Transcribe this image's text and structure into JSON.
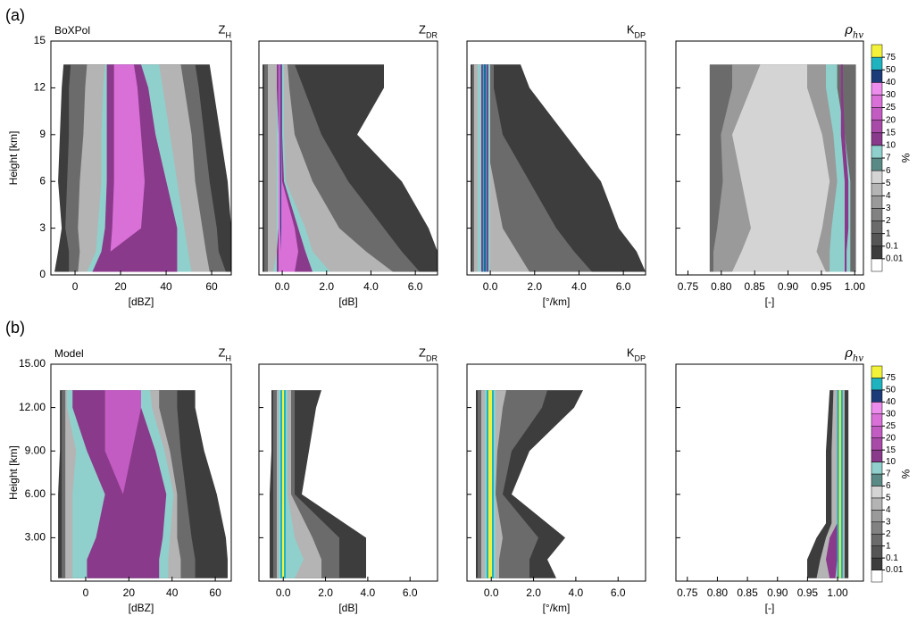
{
  "figure_labels": [
    "(a)",
    "(b)"
  ],
  "chart_data": [
    {
      "type": "cfad",
      "label": "BoXPol",
      "title": {
        "main": "Z",
        "sub": "H"
      },
      "xlabel": "[dBZ]",
      "ylabel": "Height [km]",
      "xlim": [
        -10.6,
        68.6
      ],
      "xticks": [
        0,
        20,
        40,
        60
      ],
      "ylim": [
        0,
        15
      ],
      "yticks": [
        0,
        3,
        6,
        9,
        12,
        15
      ]
    },
    {
      "type": "cfad",
      "title": {
        "main": "Z",
        "sub": "DR"
      },
      "xlabel": "[dB]",
      "xlim": [
        -1.05,
        7.0
      ],
      "xticks": [
        {
          "value": 0,
          "label": "0.0"
        },
        {
          "value": 2,
          "label": "2.0"
        },
        {
          "value": 4,
          "label": "4.0"
        },
        {
          "value": 6,
          "label": "6.0"
        }
      ],
      "ylim": [
        0,
        15
      ]
    },
    {
      "type": "cfad",
      "title": {
        "main": "K",
        "sub": "DP"
      },
      "xlabel": "[°/km]",
      "xlim": [
        -1.05,
        7.0
      ],
      "xticks": [
        {
          "value": 0,
          "label": "0.0"
        },
        {
          "value": 2,
          "label": "2.0"
        },
        {
          "value": 4,
          "label": "4.0"
        },
        {
          "value": 6,
          "label": "6.0"
        }
      ],
      "ylim": [
        0,
        15
      ]
    },
    {
      "type": "cfad",
      "title": {
        "main": "ρ",
        "sub": "hv"
      },
      "xlabel": "[-]",
      "xlim": [
        0.732,
        1.013
      ],
      "xticks": [
        0.75,
        {
          "value": 0.8,
          "label": "0.80"
        },
        0.85,
        {
          "value": 0.9,
          "label": "0.90"
        },
        0.95,
        {
          "value": 1,
          "label": "1.00"
        }
      ],
      "ylim": [
        0,
        15
      ]
    },
    {
      "type": "cfad",
      "label": "Model",
      "title": {
        "main": "Z",
        "sub": "H"
      },
      "xlabel": "[dBZ]",
      "ylabel": "Height [km]",
      "xlim": [
        -16.1,
        67.4
      ],
      "xticks": [
        0,
        20,
        40,
        60
      ],
      "ylim": [
        0,
        15
      ],
      "yticks": [
        {
          "value": 3,
          "label": "3.00"
        },
        {
          "value": 6,
          "label": "6.00"
        },
        {
          "value": 9,
          "label": "9.00"
        },
        {
          "value": 12,
          "label": "12.00"
        },
        {
          "value": 15,
          "label": "15.00"
        }
      ]
    },
    {
      "type": "cfad",
      "title": {
        "main": "Z",
        "sub": "DR"
      },
      "xlabel": "[dB]",
      "xlim": [
        -1.15,
        7.3
      ],
      "xticks": [
        {
          "value": 0,
          "label": "0.0"
        },
        {
          "value": 2,
          "label": "2.0"
        },
        {
          "value": 4,
          "label": "4.0"
        },
        {
          "value": 6,
          "label": "6.0"
        }
      ],
      "ylim": [
        0,
        15
      ]
    },
    {
      "type": "cfad",
      "title": {
        "main": "K",
        "sub": "DP"
      },
      "xlabel": "[°/km]",
      "xlim": [
        -1.15,
        7.3
      ],
      "xticks": [
        {
          "value": 0,
          "label": "0.0"
        },
        {
          "value": 2,
          "label": "2.0"
        },
        {
          "value": 4,
          "label": "4.0"
        },
        {
          "value": 6,
          "label": "6.0"
        }
      ],
      "ylim": [
        0,
        15
      ]
    },
    {
      "type": "cfad",
      "title": {
        "main": "ρ",
        "sub": "hv"
      },
      "xlabel": "[-]",
      "xlim": [
        0.731,
        1.043
      ],
      "xticks": [
        0.75,
        {
          "value": 0.8,
          "label": "0.80"
        },
        0.85,
        {
          "value": 0.9,
          "label": "0.90"
        },
        0.95,
        {
          "value": 1,
          "label": "1.00"
        }
      ],
      "ylim": [
        0,
        15
      ]
    }
  ],
  "colorbars": [
    {
      "label": "%",
      "ticks": [
        0.01,
        0.1,
        1,
        2,
        3,
        4,
        5,
        6,
        7,
        10,
        15,
        20,
        25,
        30,
        40,
        50,
        75
      ],
      "colors": [
        "#ffffff",
        "#3d3d3d",
        "#555555",
        "#6b6b6b",
        "#828282",
        "#9a9a9a",
        "#b4b4b4",
        "#d4d4d4",
        "#5a8a86",
        "#8fd0cc",
        "#8a3a8a",
        "#a84aa8",
        "#c25cc2",
        "#d870d8",
        "#ec8cec",
        "#1d3b78",
        "#1fb3bf",
        "#f2f23a"
      ]
    },
    {
      "label": "%",
      "ticks": [
        0.01,
        0.1,
        1,
        2,
        3,
        4,
        5,
        6,
        7,
        10,
        15,
        20,
        25,
        30,
        40,
        50,
        75
      ],
      "colors": [
        "#ffffff",
        "#3d3d3d",
        "#555555",
        "#6b6b6b",
        "#828282",
        "#9a9a9a",
        "#b4b4b4",
        "#d4d4d4",
        "#5a8a86",
        "#8fd0cc",
        "#8a3a8a",
        "#a84aa8",
        "#c25cc2",
        "#d870d8",
        "#ec8cec",
        "#1d3b78",
        "#1fb3bf",
        "#f2f23a"
      ]
    }
  ]
}
